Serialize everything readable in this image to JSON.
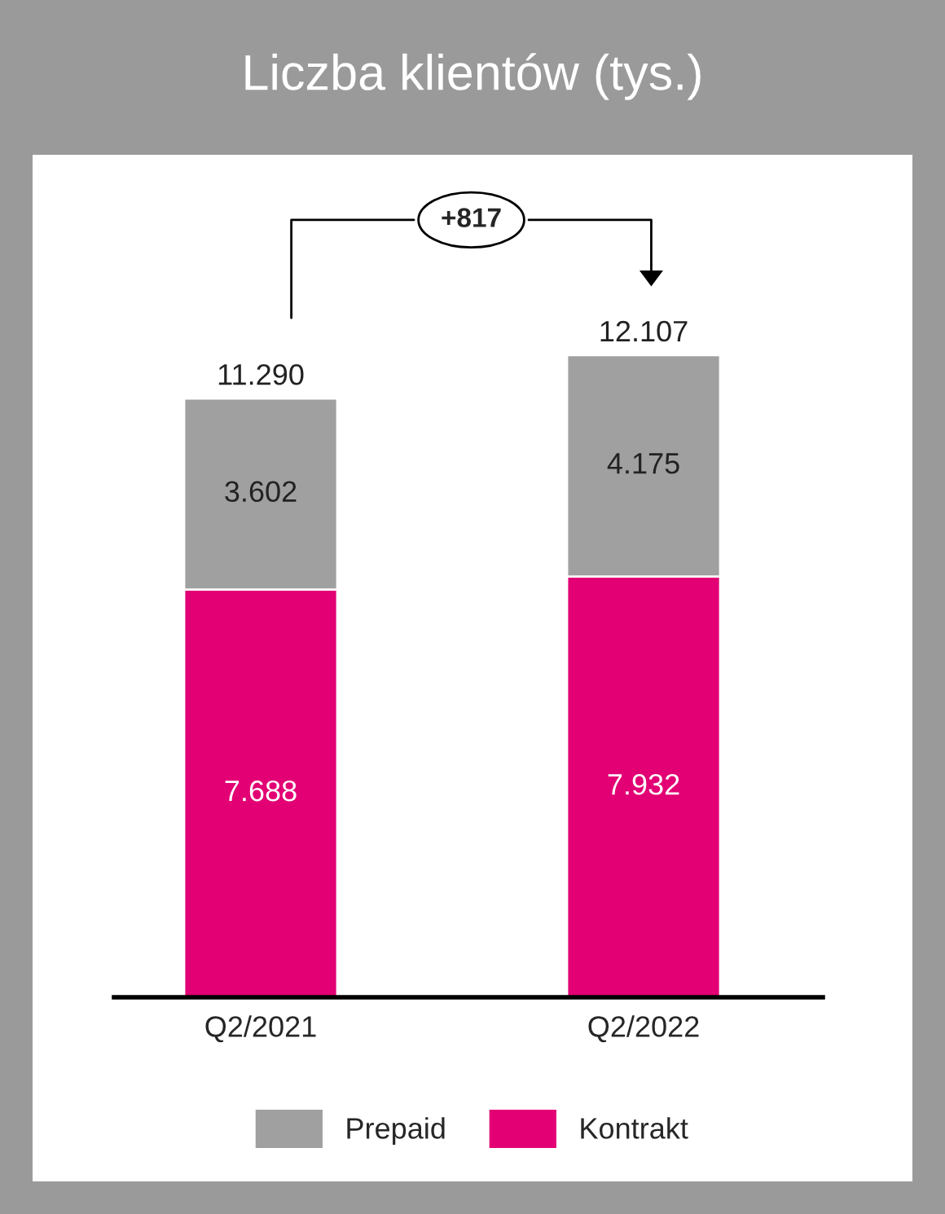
{
  "chart_data": {
    "type": "bar",
    "title": "Liczba klientów (tys.)",
    "stacked": true,
    "categories": [
      "Q2/2021",
      "Q2/2022"
    ],
    "series": [
      {
        "name": "Kontrakt",
        "color": "#e20074",
        "values": [
          7688,
          7932
        ],
        "value_labels": [
          "7.688",
          "7.932"
        ]
      },
      {
        "name": "Prepaid",
        "color": "#a0a0a0",
        "values": [
          3602,
          4175
        ],
        "value_labels": [
          "3.602",
          "4.175"
        ]
      }
    ],
    "totals": [
      "11.290",
      "12.107"
    ],
    "annotations": [
      "+817"
    ],
    "legend": "bottom",
    "grid": false
  }
}
